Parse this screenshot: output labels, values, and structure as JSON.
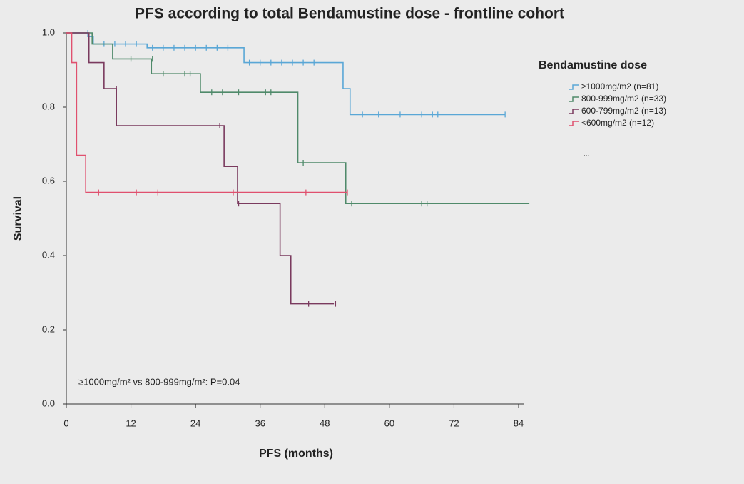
{
  "chart_data": {
    "type": "line",
    "step": "post",
    "title": "PFS according to total Bendamustine dose - frontline cohort",
    "x_label": "PFS (months)",
    "y_label": "Survival",
    "annotation": "≥1000mg/m² vs 800-999mg/m²: P=0.04",
    "legend_title": "Bendamustine dose",
    "legend_position": "right",
    "legend_extra": "...",
    "xlim": [
      0,
      86
    ],
    "xticks": [
      0,
      12,
      24,
      36,
      48,
      60,
      72,
      84
    ],
    "ylim": [
      0,
      1
    ],
    "yticks": [
      {
        "value": 0,
        "label": "0.0"
      },
      0.2,
      0.4,
      0.6,
      0.8,
      {
        "value": 1,
        "label": "1.0"
      }
    ],
    "series": [
      {
        "name": "≥1000mg/m2 (n=81)",
        "color": "#5aa7d6",
        "x": [
          0,
          4,
          5,
          15,
          33,
          51.4,
          52.7,
          81.5
        ],
        "values": [
          1.0,
          0.99,
          0.97,
          0.96,
          0.92,
          0.85,
          0.78,
          0.78
        ],
        "censor_x": [
          4,
          7,
          9,
          11,
          13,
          16,
          18,
          20,
          22,
          24,
          26,
          28,
          30,
          34,
          36,
          38,
          40,
          42,
          44,
          46,
          55,
          58,
          62,
          66,
          68,
          69,
          81.5
        ],
        "censor_values": [
          1.0,
          0.97,
          0.97,
          0.97,
          0.97,
          0.96,
          0.96,
          0.96,
          0.96,
          0.96,
          0.96,
          0.96,
          0.96,
          0.92,
          0.92,
          0.92,
          0.92,
          0.92,
          0.92,
          0.92,
          0.78,
          0.78,
          0.78,
          0.78,
          0.78,
          0.78,
          0.78
        ]
      },
      {
        "name": "800-999mg/m2 (n=33)",
        "color": "#4f8a6a",
        "x": [
          0,
          4.8,
          8.6,
          15.8,
          24.9,
          43,
          51.9,
          86
        ],
        "values": [
          1.0,
          0.97,
          0.93,
          0.89,
          0.84,
          0.65,
          0.54,
          0.54
        ],
        "censor_x": [
          12,
          16,
          18,
          22,
          23,
          27,
          29,
          32,
          37,
          38,
          44,
          53,
          66,
          67
        ],
        "censor_values": [
          0.93,
          0.93,
          0.89,
          0.89,
          0.89,
          0.84,
          0.84,
          0.84,
          0.84,
          0.84,
          0.65,
          0.54,
          0.54,
          0.54
        ]
      },
      {
        "name": "600-799mg/m2 (n=13)",
        "color": "#7a3a5e",
        "x": [
          0,
          4.2,
          7,
          9.3,
          29.3,
          31.8,
          39.7,
          41.7,
          49.7
        ],
        "values": [
          1.0,
          0.92,
          0.85,
          0.75,
          0.64,
          0.54,
          0.4,
          0.27,
          0.27
        ],
        "censor_x": [
          9.3,
          28.5,
          32,
          45,
          50
        ],
        "censor_values": [
          0.85,
          0.75,
          0.54,
          0.27,
          0.27
        ]
      },
      {
        "name": "<600mg/m2 (n=12)",
        "color": "#e0506e",
        "x": [
          0,
          1,
          1.9,
          3.6,
          52.2
        ],
        "values": [
          1.0,
          0.92,
          0.67,
          0.57,
          0.57
        ],
        "censor_x": [
          6,
          13,
          17,
          31,
          44.5,
          52.2
        ],
        "censor_values": [
          0.57,
          0.57,
          0.57,
          0.57,
          0.57,
          0.57
        ]
      }
    ]
  }
}
